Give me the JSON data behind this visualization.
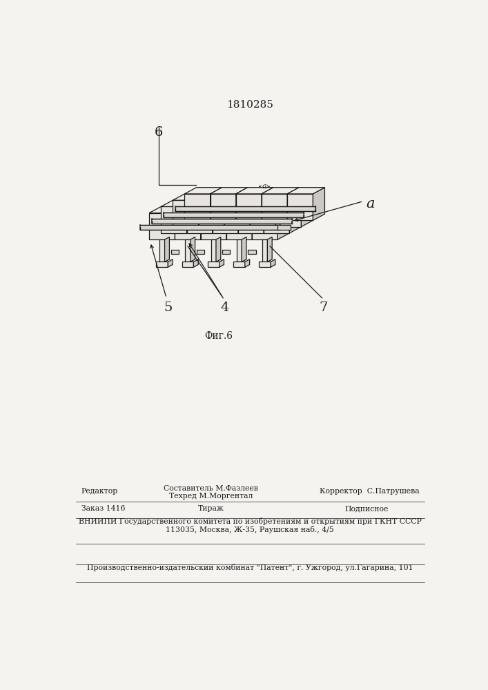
{
  "patent_number": "1810285",
  "fig_label": "Фиг.6",
  "bg_color": "#f5f3f0",
  "line_color": "#1a1a1a",
  "face_front": "#e8e5e0",
  "face_right": "#ccc9c4",
  "face_top": "#f0ede8",
  "label_6": "6",
  "label_5": "5",
  "label_4": "4",
  "label_7": "7",
  "label_a": "a",
  "footer_line1_left": "Редактор",
  "footer_line1_center1": "Составитель М.Фазлеев",
  "footer_line1_center2": "Техред М.Моргентал",
  "footer_line1_right": "Корректор  С.Патрушева",
  "footer_line2_left": "Заказ 1416",
  "footer_line2_center": "Тираж",
  "footer_line2_right": "Подписное",
  "footer_line3": "ВНИИПИ Государственного комитета по изобретениям и открытиям при ГКНТ СССР",
  "footer_line4": "113035, Москва, Ж-35, Раушская наб., 4/5",
  "footer_line5": "Производственно-издательский комбинат \"Патент\", г. Ужгород, ул.Гагарина, 101",
  "grid_rows": 4,
  "grid_cols": 5
}
